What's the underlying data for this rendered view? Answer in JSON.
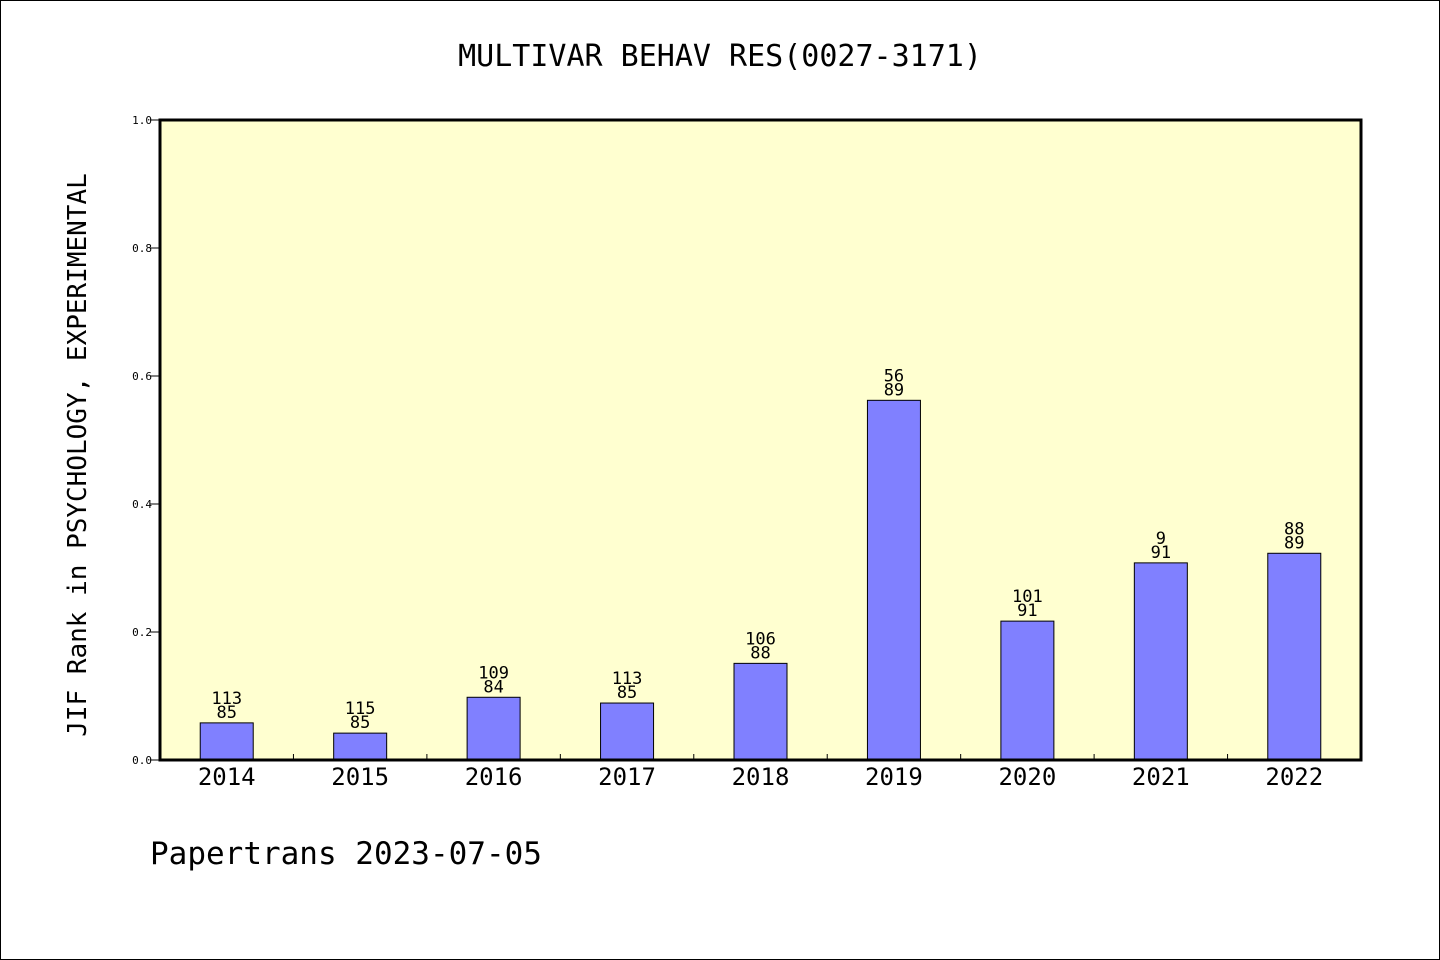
{
  "chart_data": {
    "type": "bar",
    "title": "MULTIVAR BEHAV RES(0027-3171)",
    "ylabel": "JIF Rank in PSYCHOLOGY, EXPERIMENTAL",
    "xlabel": "",
    "ylim": [
      0,
      1.0
    ],
    "yticks": [
      "0.0",
      "0.2",
      "0.4",
      "0.6",
      "0.8",
      "1.0"
    ],
    "ytick_values": [
      0,
      0.2,
      0.4,
      0.6,
      0.8,
      1.0
    ],
    "categories": [
      "2014",
      "2015",
      "2016",
      "2017",
      "2018",
      "2019",
      "2020",
      "2021",
      "2022"
    ],
    "values": [
      0.058,
      0.042,
      0.098,
      0.089,
      0.151,
      0.562,
      0.217,
      0.308,
      0.323
    ],
    "labels_top": [
      "113",
      "115",
      "109",
      "113",
      "106",
      "56",
      "101",
      "9",
      "88"
    ],
    "labels_bottom": [
      "85",
      "85",
      "84",
      "85",
      "88",
      "89",
      "91",
      "91",
      "89"
    ],
    "grid": false,
    "colors": {
      "plot_background": "#ffffd0",
      "bar_fill": "#8080ff",
      "bar_stroke": "#000000"
    }
  },
  "footer": {
    "credit": "Papertrans 2023-07-05"
  }
}
